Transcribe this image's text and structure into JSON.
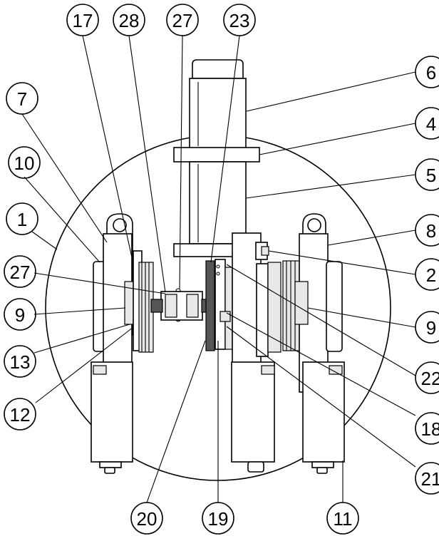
{
  "callouts": [
    {
      "id": "c-17",
      "label": "17"
    },
    {
      "id": "c-28",
      "label": "28"
    },
    {
      "id": "c-27-top",
      "label": "27"
    },
    {
      "id": "c-23",
      "label": "23"
    },
    {
      "id": "c-6",
      "label": "6"
    },
    {
      "id": "c-7",
      "label": "7"
    },
    {
      "id": "c-4",
      "label": "4"
    },
    {
      "id": "c-10",
      "label": "10"
    },
    {
      "id": "c-5",
      "label": "5"
    },
    {
      "id": "c-1",
      "label": "1"
    },
    {
      "id": "c-8",
      "label": "8"
    },
    {
      "id": "c-27-left",
      "label": "27"
    },
    {
      "id": "c-2",
      "label": "2"
    },
    {
      "id": "c-9-left",
      "label": "9"
    },
    {
      "id": "c-9-right",
      "label": "9"
    },
    {
      "id": "c-13",
      "label": "13"
    },
    {
      "id": "c-22",
      "label": "22"
    },
    {
      "id": "c-12",
      "label": "12"
    },
    {
      "id": "c-18",
      "label": "18"
    },
    {
      "id": "c-21",
      "label": "21"
    },
    {
      "id": "c-20",
      "label": "20"
    },
    {
      "id": "c-19",
      "label": "19"
    },
    {
      "id": "c-11",
      "label": "11"
    }
  ]
}
